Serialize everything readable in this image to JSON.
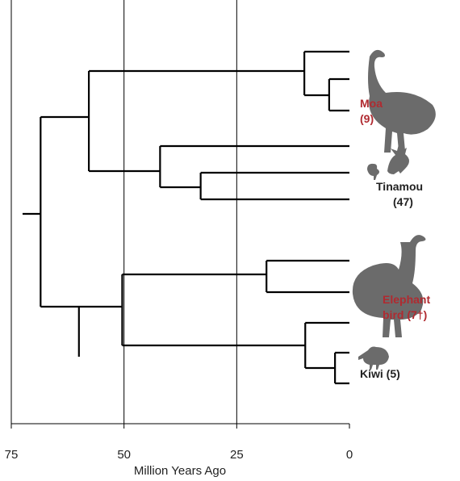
{
  "chart_data": {
    "type": "tree",
    "x_label": "Million Years Ago",
    "xlim": [
      75,
      0
    ],
    "xticks": [
      75,
      50,
      25,
      0
    ],
    "grid": true,
    "divergence_ages": [
      72.5,
      68.5,
      57.8,
      10,
      4.5,
      42,
      33,
      50.4,
      18.4,
      9.8,
      3.2,
      60
    ],
    "clades": [
      {
        "name": "Moa",
        "count": "(9)",
        "color": "#b02a30"
      },
      {
        "name": "Tinamou",
        "count": "(47)",
        "color": "#222222"
      },
      {
        "name": "Elephant",
        "count": "bird (7†)",
        "color": "#b02a30"
      },
      {
        "name": "Kiwi (5)",
        "color": "#222222"
      }
    ]
  }
}
